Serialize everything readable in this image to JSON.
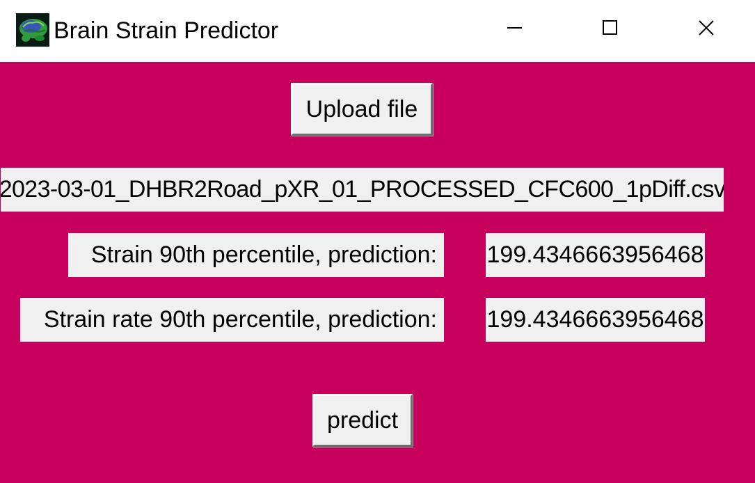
{
  "window": {
    "title": "Brain Strain Predictor",
    "icon": "brain-icon",
    "background_color": "#c8005d",
    "controls": {
      "minimize_icon": "minimize-icon",
      "maximize_icon": "maximize-icon",
      "close_icon": "close-icon"
    }
  },
  "main": {
    "upload_button_label": "Upload file",
    "filename": "2023-03-01_DHBR2Road_pXR_01_PROCESSED_CFC600_1pDiff.csv",
    "strain_label": "Strain 90th percentile, prediction:",
    "strain_value": "199.4346663956468",
    "strain_rate_label": "Strain rate 90th percentile, prediction:",
    "strain_rate_value": "199.4346663956468",
    "predict_button_label": "predict"
  }
}
